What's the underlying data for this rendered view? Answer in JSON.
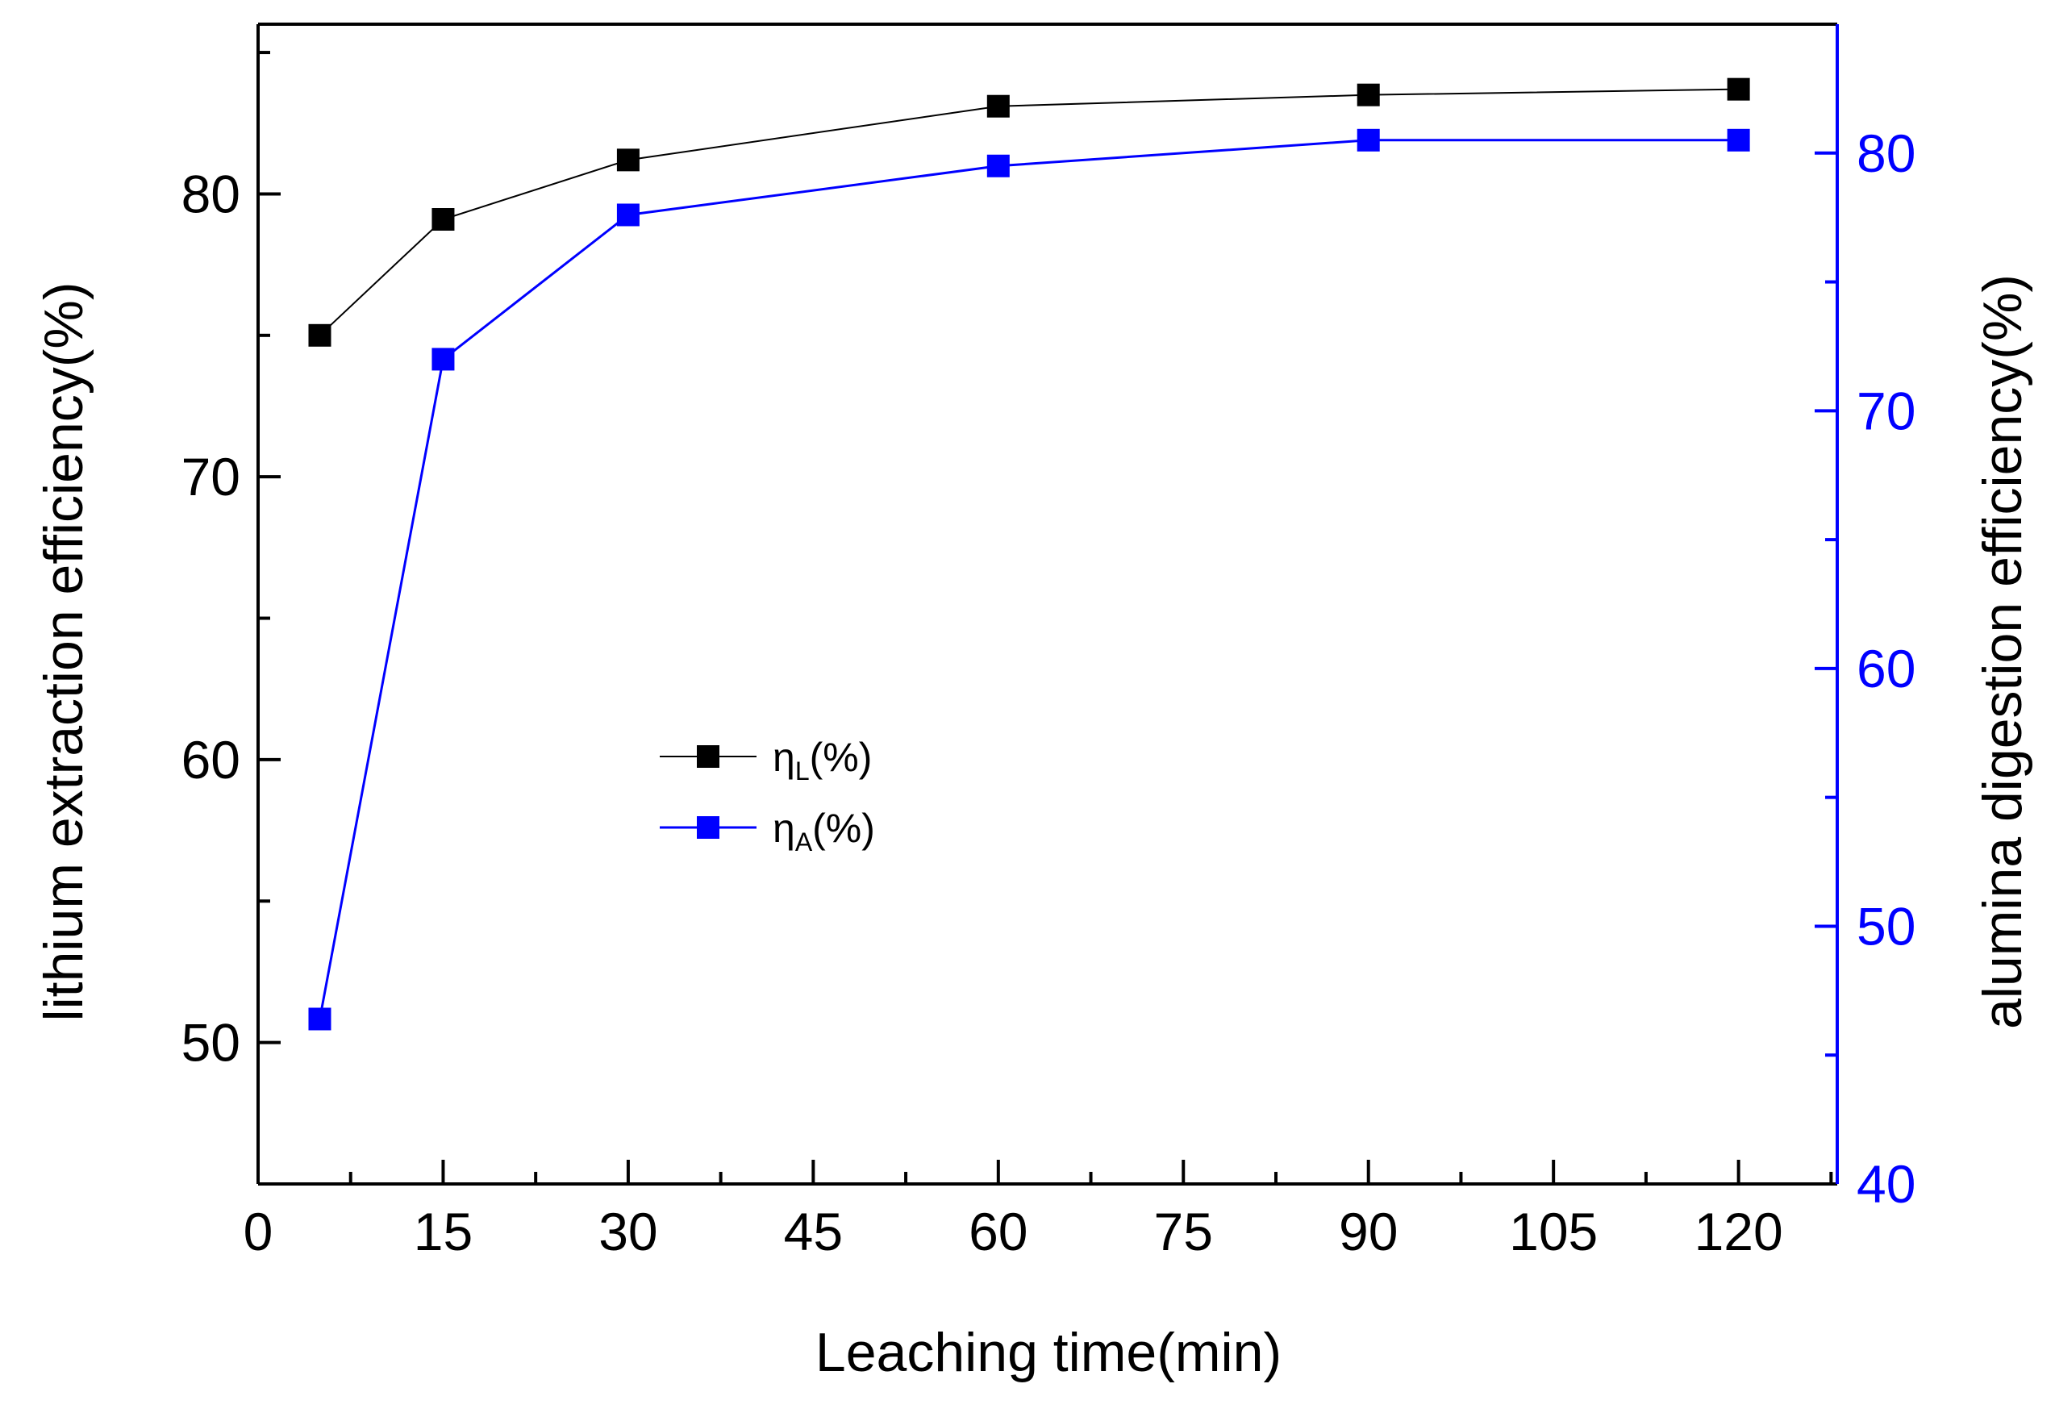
{
  "chart_data": {
    "type": "line",
    "title": "",
    "xlabel": "Leaching time(min)",
    "ylabel": "lithium extraction efficiency(%)",
    "y2label": "alumina digestion efficiency(%)",
    "xlim": [
      0,
      128
    ],
    "ylim": [
      45,
      86
    ],
    "y2lim": [
      40,
      85
    ],
    "x_ticks": [
      0,
      15,
      30,
      45,
      60,
      75,
      90,
      105,
      120
    ],
    "x_tick_labels": [
      "0",
      "15",
      "30",
      "45",
      "60",
      "75",
      "90",
      "105",
      "120"
    ],
    "y_ticks": [
      50,
      60,
      70,
      80
    ],
    "y_tick_labels": [
      "50",
      "60",
      "70",
      "80"
    ],
    "y2_ticks": [
      40,
      50,
      60,
      70,
      80
    ],
    "y2_tick_labels": [
      "40",
      "50",
      "60",
      "70",
      "80"
    ],
    "legend_position": "center-left",
    "grid": false,
    "series": [
      {
        "name": "η",
        "subscript": "L",
        "suffix": "(%)",
        "axis": "left",
        "color": "#000000",
        "x": [
          5,
          15,
          30,
          60,
          90,
          120
        ],
        "values": [
          75.0,
          79.1,
          81.2,
          83.1,
          83.5,
          83.7
        ]
      },
      {
        "name": "η",
        "subscript": "A",
        "suffix": "(%)",
        "axis": "right",
        "color": "#0000ff",
        "x": [
          5,
          15,
          30,
          60,
          90,
          120
        ],
        "values": [
          46.4,
          72.0,
          77.6,
          79.5,
          80.5,
          80.5
        ]
      }
    ]
  }
}
